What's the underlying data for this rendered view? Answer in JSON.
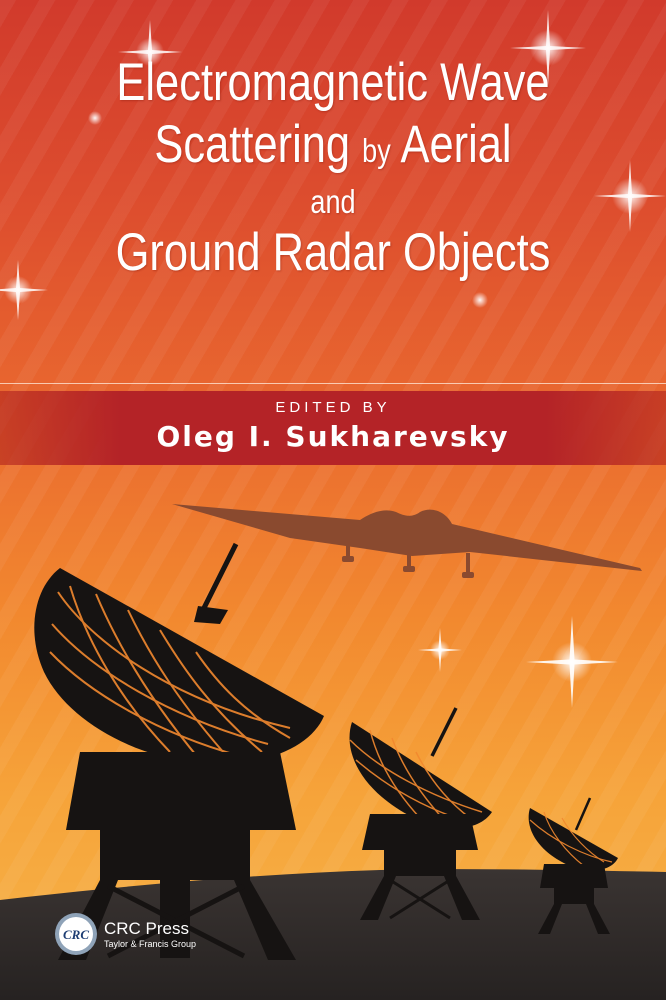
{
  "book": {
    "title_lines": [
      "Electromagnetic Wave",
      "Scattering",
      "by",
      "Aerial",
      "and",
      "Ground Radar Objects"
    ],
    "edited_by": "EDITED BY",
    "editor": "Oleg I. Sukharevsky"
  },
  "publisher": {
    "name": "CRC Press",
    "group": "Taylor & Francis Group",
    "logo_text": "CRC"
  },
  "artwork": {
    "silhouettes": [
      "stealth-bomber",
      "radar-dish-large",
      "radar-dish-medium",
      "radar-dish-small"
    ],
    "sparkles": 8
  },
  "colors": {
    "background_top": "#d13a2c",
    "background_bottom": "#f7b44a",
    "band": "#b42327",
    "silhouette": "#161312",
    "bomber": "#8a4a2f",
    "text": "#ffffff"
  }
}
